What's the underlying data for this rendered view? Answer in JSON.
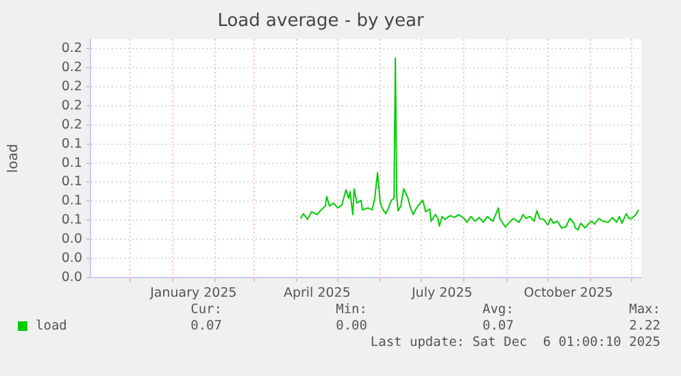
{
  "chart_data": {
    "type": "line",
    "title": "Load average - by year",
    "ylabel": "load",
    "xlim": [
      "2024-11-02",
      "2025-12-08"
    ],
    "xticks": [
      {
        "value": "2024-12-01",
        "label": null
      },
      {
        "value": "2025-01-01",
        "label": null
      },
      {
        "value": "2025-01-16",
        "label": "January 2025"
      },
      {
        "value": "2025-02-01",
        "label": null
      },
      {
        "value": "2025-03-01",
        "label": null
      },
      {
        "value": "2025-04-01",
        "label": null
      },
      {
        "value": "2025-04-16",
        "label": "April 2025"
      },
      {
        "value": "2025-05-01",
        "label": null
      },
      {
        "value": "2025-06-01",
        "label": null
      },
      {
        "value": "2025-07-01",
        "label": null
      },
      {
        "value": "2025-07-16",
        "label": "July 2025"
      },
      {
        "value": "2025-08-01",
        "label": null
      },
      {
        "value": "2025-09-01",
        "label": null
      },
      {
        "value": "2025-10-01",
        "label": null
      },
      {
        "value": "2025-10-16",
        "label": "October 2025"
      },
      {
        "value": "2025-11-01",
        "label": null
      },
      {
        "value": "2025-12-01",
        "label": null
      }
    ],
    "ylim": [
      0,
      0.25
    ],
    "yticks": [
      {
        "value": 0,
        "label": "0.0"
      },
      {
        "value": 0.02,
        "label": "0.0"
      },
      {
        "value": 0.04,
        "label": "0.0"
      },
      {
        "value": 0.06,
        "label": "0.1"
      },
      {
        "value": 0.08,
        "label": "0.1"
      },
      {
        "value": 0.1,
        "label": "0.1"
      },
      {
        "value": 0.12,
        "label": "0.1"
      },
      {
        "value": 0.14,
        "label": "0.1"
      },
      {
        "value": 0.16,
        "label": "0.2"
      },
      {
        "value": 0.18,
        "label": "0.2"
      },
      {
        "value": 0.2,
        "label": "0.2"
      },
      {
        "value": 0.22,
        "label": "0.2"
      },
      {
        "value": 0.24,
        "label": "0.2"
      }
    ],
    "grid": true,
    "legend": "bottom left",
    "marker": "none",
    "line_style": "solid",
    "series": [
      {
        "name": "load",
        "color": "#00cc00",
        "x": [
          "2025-04-04",
          "2025-04-06",
          "2025-04-09",
          "2025-04-12",
          "2025-04-16",
          "2025-04-19",
          "2025-04-22",
          "2025-04-23",
          "2025-04-25",
          "2025-04-28",
          "2025-05-01",
          "2025-05-04",
          "2025-05-07",
          "2025-05-09",
          "2025-05-10",
          "2025-05-12",
          "2025-05-13",
          "2025-05-15",
          "2025-05-18",
          "2025-05-19",
          "2025-05-23",
          "2025-05-26",
          "2025-05-28",
          "2025-05-30",
          "2025-06-01",
          "2025-06-03",
          "2025-06-05",
          "2025-06-07",
          "2025-06-09",
          "2025-06-11",
          "2025-06-12",
          "2025-06-13",
          "2025-06-14",
          "2025-06-16",
          "2025-06-18",
          "2025-06-21",
          "2025-06-23",
          "2025-06-25",
          "2025-06-27",
          "2025-06-30",
          "2025-07-02",
          "2025-07-04",
          "2025-07-07",
          "2025-07-08",
          "2025-07-11",
          "2025-07-13",
          "2025-07-14",
          "2025-07-16",
          "2025-07-18",
          "2025-07-22",
          "2025-07-25",
          "2025-07-28",
          "2025-08-01",
          "2025-08-03",
          "2025-08-06",
          "2025-08-09",
          "2025-08-12",
          "2025-08-15",
          "2025-08-18",
          "2025-08-22",
          "2025-08-26",
          "2025-08-27",
          "2025-08-31",
          "2025-09-03",
          "2025-09-06",
          "2025-09-10",
          "2025-09-13",
          "2025-09-15",
          "2025-09-18",
          "2025-09-21",
          "2025-09-23",
          "2025-09-25",
          "2025-09-28",
          "2025-10-01",
          "2025-10-03",
          "2025-10-05",
          "2025-10-08",
          "2025-10-11",
          "2025-10-14",
          "2025-10-17",
          "2025-10-20",
          "2025-10-21",
          "2025-10-23",
          "2025-10-25",
          "2025-10-28",
          "2025-10-31",
          "2025-11-02",
          "2025-11-04",
          "2025-11-07",
          "2025-11-10",
          "2025-11-14",
          "2025-11-17",
          "2025-11-20",
          "2025-11-22",
          "2025-11-24",
          "2025-11-27",
          "2025-11-29",
          "2025-12-01",
          "2025-12-04",
          "2025-12-06"
        ],
        "values": [
          0.062,
          0.067,
          0.061,
          0.069,
          0.066,
          0.071,
          0.075,
          0.085,
          0.075,
          0.078,
          0.073,
          0.076,
          0.092,
          0.083,
          0.09,
          0.066,
          0.093,
          0.078,
          0.081,
          0.071,
          0.073,
          0.071,
          0.083,
          0.11,
          0.078,
          0.071,
          0.067,
          0.073,
          0.081,
          0.083,
          0.23,
          0.085,
          0.07,
          0.075,
          0.093,
          0.084,
          0.073,
          0.066,
          0.072,
          0.078,
          0.081,
          0.069,
          0.072,
          0.059,
          0.066,
          0.062,
          0.054,
          0.064,
          0.061,
          0.065,
          0.063,
          0.066,
          0.062,
          0.058,
          0.064,
          0.059,
          0.063,
          0.058,
          0.064,
          0.059,
          0.073,
          0.062,
          0.053,
          0.058,
          0.062,
          0.058,
          0.066,
          0.062,
          0.064,
          0.059,
          0.07,
          0.062,
          0.061,
          0.055,
          0.062,
          0.057,
          0.059,
          0.052,
          0.053,
          0.062,
          0.057,
          0.052,
          0.05,
          0.057,
          0.052,
          0.057,
          0.059,
          0.056,
          0.062,
          0.059,
          0.058,
          0.063,
          0.058,
          0.064,
          0.057,
          0.067,
          0.062,
          0.062,
          0.066,
          0.071
        ]
      }
    ],
    "annotations": [
      "Cur:",
      "Min:",
      "Avg:",
      "Max:",
      "0.07",
      "0.00",
      "0.07",
      "2.22",
      "Last update: Sat Dec  6 01:00:10 2025"
    ]
  }
}
